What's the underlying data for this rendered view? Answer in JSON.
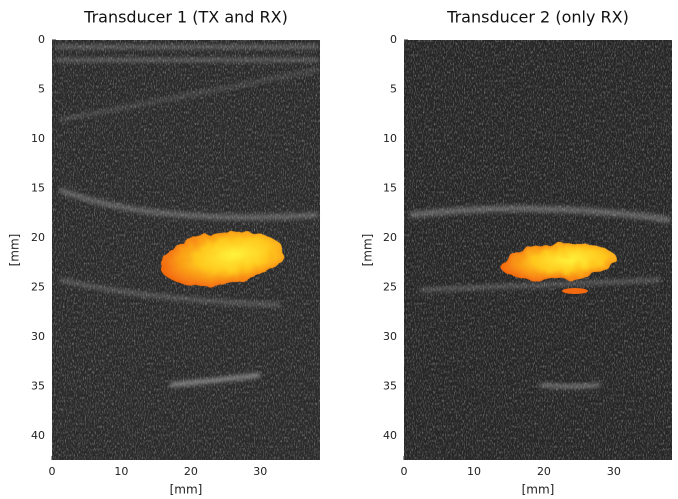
{
  "chart_data": [
    {
      "type": "image",
      "title": "Transducer 1 (TX and RX)",
      "xlabel": "[mm]",
      "ylabel": "[mm]",
      "xlim": [
        0,
        38.6
      ],
      "ylim": [
        0,
        42.4
      ],
      "y_inverted": true,
      "xticks": [
        0,
        10,
        20,
        30
      ],
      "yticks": [
        0,
        5,
        10,
        15,
        20,
        25,
        30,
        35,
        40
      ]
    },
    {
      "type": "image",
      "title": "Transducer 2 (only RX)",
      "xlabel": "[mm]",
      "ylabel": "[mm]",
      "xlim": [
        0,
        38.3
      ],
      "ylim": [
        0,
        42.4
      ],
      "y_inverted": true,
      "xticks": [
        0,
        10,
        20,
        30
      ],
      "yticks": [
        0,
        5,
        10,
        15,
        20,
        25,
        30,
        35,
        40
      ]
    }
  ]
}
